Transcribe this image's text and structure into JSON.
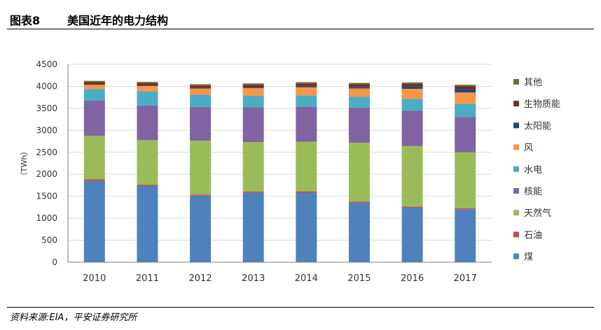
{
  "header": {
    "figure_label": "图表8",
    "title": "美国近年的电力结构"
  },
  "footer": {
    "source": "资料来源:EIA，平安证券研究所"
  },
  "chart_data": {
    "type": "bar",
    "stacked": true,
    "title": "美国近年的电力结构",
    "ylabel": "（TWh）",
    "ylim": [
      0,
      4500
    ],
    "yticks": [
      0,
      500,
      1000,
      1500,
      2000,
      2500,
      3000,
      3500,
      4000,
      4500
    ],
    "grid": true,
    "legend_position": "right",
    "categories": [
      "2010",
      "2011",
      "2012",
      "2013",
      "2014",
      "2015",
      "2016",
      "2017"
    ],
    "series": [
      {
        "name": "煤",
        "color": "#4f81bd",
        "values": [
          1847,
          1733,
          1514,
          1581,
          1582,
          1352,
          1239,
          1206
        ]
      },
      {
        "name": "石油",
        "color": "#c0504d",
        "values": [
          37,
          30,
          23,
          27,
          30,
          28,
          24,
          21
        ]
      },
      {
        "name": "天然气",
        "color": "#9bbb59",
        "values": [
          988,
          1014,
          1226,
          1124,
          1127,
          1335,
          1379,
          1273
        ]
      },
      {
        "name": "核能",
        "color": "#8064a2",
        "values": [
          807,
          790,
          769,
          789,
          797,
          797,
          806,
          805
        ]
      },
      {
        "name": "水电",
        "color": "#4bacc6",
        "values": [
          260,
          319,
          276,
          269,
          259,
          249,
          268,
          300
        ]
      },
      {
        "name": "风",
        "color": "#f79646",
        "values": [
          95,
          120,
          141,
          168,
          182,
          191,
          227,
          254
        ]
      },
      {
        "name": "太阳能",
        "color": "#1f497d",
        "values": [
          4,
          7,
          12,
          15,
          25,
          35,
          54,
          77
        ]
      },
      {
        "name": "生物质能",
        "color": "#772c2a",
        "values": [
          56,
          57,
          58,
          60,
          64,
          64,
          63,
          63
        ]
      },
      {
        "name": "其他",
        "color": "#5f7530",
        "values": [
          30,
          30,
          28,
          32,
          28,
          27,
          28,
          35
        ]
      }
    ]
  }
}
